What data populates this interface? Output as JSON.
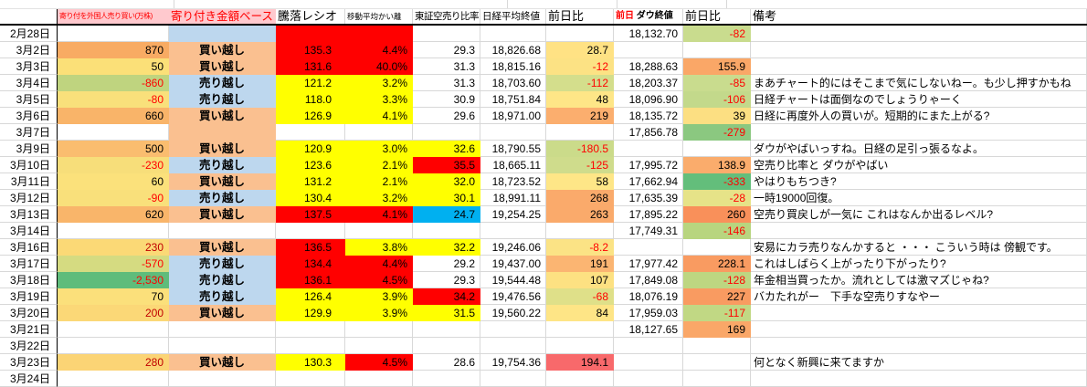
{
  "header": {
    "col_b": "寄り付を外国人売り買い(万株)",
    "col_c": "寄り付き金額ベース",
    "col_d": "騰落レシオ",
    "col_e": "移動平均かい離",
    "col_f": "東証空売り比率",
    "col_g": "日経平均終値",
    "col_h": "前日比",
    "col_i_prev": "前日",
    "col_i_close": "ダウ終値",
    "col_j": "前日比",
    "col_k": "備考"
  },
  "colors": {
    "grid": "#D8D8D8",
    "negative_text": "#FF0000",
    "manual_red_text": "#C00000",
    "header_pink": "#FFC9CE",
    "buy_peach": "#FAC090",
    "sell_blue": "#BDD7EE",
    "hot_red": "#FF0000",
    "warn_yellow": "#FFFF00",
    "cool_cyan": "#00B0F0",
    "salmon_red": "#F8696B"
  },
  "rows": [
    {
      "date": "2月28日",
      "b": "",
      "c": {
        "v": "",
        "bg": "#BDD7EE"
      },
      "d": {
        "v": "",
        "bg": "#FF0000"
      },
      "e": {
        "v": "",
        "bg": "#FF0000"
      },
      "f": "",
      "g": "",
      "h": "",
      "i": "18,132.70",
      "j": {
        "v": "-82",
        "bg": "#C9DC8E",
        "fg": "#FF0000"
      },
      "k": ""
    },
    {
      "date": "3月2日",
      "b": {
        "v": "870",
        "bg": "#F8AB63"
      },
      "c": {
        "v": "買い越し",
        "bg": "#FAC090"
      },
      "d": {
        "v": "135.3",
        "bg": "#FF0000"
      },
      "e": {
        "v": "4.4%",
        "bg": "#FF0000"
      },
      "f": "29.3",
      "g": "18,826.68",
      "h": {
        "v": "28.7",
        "bg": "#FFE284"
      },
      "i": "",
      "j": "",
      "k": ""
    },
    {
      "date": "3月3日",
      "b": {
        "v": "50",
        "bg": "#FBE078"
      },
      "c": {
        "v": "買い越し",
        "bg": "#FAC090"
      },
      "d": {
        "v": "131.6",
        "bg": "#FF0000"
      },
      "e": {
        "v": "40.0%",
        "bg": "#FF0000"
      },
      "f": "31.3",
      "g": "18,815.16",
      "h": {
        "v": "-12",
        "bg": "#FCE284",
        "fg": "#FF0000"
      },
      "i": "18,288.63",
      "j": {
        "v": "155.9",
        "bg": "#FAA767"
      },
      "k": ""
    },
    {
      "date": "3月4日",
      "b": {
        "v": "-860",
        "bg": "#BFD47F",
        "fg": "#FF0000"
      },
      "c": {
        "v": "売り越し",
        "bg": "#BDD7EE"
      },
      "d": {
        "v": "121.2",
        "bg": "#FFFF00"
      },
      "e": {
        "v": "3.2%",
        "bg": "#FFFF00"
      },
      "f": "31.3",
      "g": "18,703.60",
      "h": {
        "v": "-112",
        "bg": "#D4DE8C",
        "fg": "#FF0000"
      },
      "i": "18,203.37",
      "j": {
        "v": "-85",
        "bg": "#C9DC8E",
        "fg": "#FF0000"
      },
      "k": "まあチャート的にはそこまで気にしないねー。も少し押すかもね"
    },
    {
      "date": "3月5日",
      "b": {
        "v": "-80",
        "bg": "#F9E07B",
        "fg": "#FF0000"
      },
      "c": {
        "v": "売り越し",
        "bg": "#BDD7EE"
      },
      "d": {
        "v": "118.0",
        "bg": "#FFFF00"
      },
      "e": {
        "v": "3.3%",
        "bg": "#FFFF00"
      },
      "f": "30.9",
      "g": "18,751.84",
      "h": {
        "v": "48",
        "bg": "#FEE687"
      },
      "i": "18,096.90",
      "j": {
        "v": "-106",
        "bg": "#C3D98B",
        "fg": "#FF0000"
      },
      "k": "日経チャートは面倒なのでしょうりゃーく"
    },
    {
      "date": "3月6日",
      "b": {
        "v": "660",
        "bg": "#F9B469"
      },
      "c": {
        "v": "買い越し",
        "bg": "#FAC090"
      },
      "d": {
        "v": "126.9",
        "bg": "#FFFF00"
      },
      "e": {
        "v": "4.1%",
        "bg": "#FFFF00"
      },
      "f": "29.6",
      "g": "18,971.00",
      "h": {
        "v": "219",
        "bg": "#FBAE6E"
      },
      "i": "18,135.72",
      "j": {
        "v": "39",
        "bg": "#FCDF82"
      },
      "k": "日経に再度外人の買いが。短期的にまた上がる?"
    },
    {
      "date": "3月7日",
      "b": "",
      "c": {
        "v": "",
        "bg": "#FAC090"
      },
      "d": "",
      "e": "",
      "f": "",
      "g": "",
      "h": "",
      "i": "17,856.78",
      "j": {
        "v": "-279",
        "bg": "#8BC880",
        "fg": "#FF0000"
      },
      "k": ""
    },
    {
      "date": "3月9日",
      "b": {
        "v": "500",
        "bg": "#FABD6F"
      },
      "c": {
        "v": "買い越し",
        "bg": "#FAC090"
      },
      "d": {
        "v": "120.9",
        "bg": "#FFFF00"
      },
      "e": {
        "v": "3.0%",
        "bg": "#FFFF00"
      },
      "f": {
        "v": "32.6",
        "bg": "#FFFF00"
      },
      "g": "18,790.55",
      "h": {
        "v": "-180.5",
        "bg": "#CBDB8A",
        "fg": "#FF0000"
      },
      "i": "",
      "j": "",
      "k": "ダウがやばいっすね。日経の足引っ張るなよ。"
    },
    {
      "date": "3月10日",
      "b": {
        "v": "-230",
        "bg": "#F7DE7A",
        "fg": "#FF0000"
      },
      "c": {
        "v": "売り越し",
        "bg": "#BDD7EE"
      },
      "d": {
        "v": "123.6",
        "bg": "#FFFF00"
      },
      "e": {
        "v": "2.1%",
        "bg": "#FFFF00"
      },
      "f": {
        "v": "35.5",
        "bg": "#FF0000"
      },
      "g": "18,665.11",
      "h": {
        "v": "-125",
        "bg": "#CFDC8C",
        "fg": "#FF0000"
      },
      "i": "17,995.72",
      "j": {
        "v": "138.9",
        "bg": "#FAAC6C"
      },
      "k": "空売り比率と ダウがやばい"
    },
    {
      "date": "3月11日",
      "b": {
        "v": "60",
        "bg": "#FBE17B"
      },
      "c": {
        "v": "買い越し",
        "bg": "#FAC090"
      },
      "d": {
        "v": "131.2",
        "bg": "#FFFF00"
      },
      "e": {
        "v": "2.1%",
        "bg": "#FFFF00"
      },
      "f": {
        "v": "32.0",
        "bg": "#FFFF00"
      },
      "g": "18,723.52",
      "h": {
        "v": "58",
        "bg": "#FEE687"
      },
      "i": "17,662.94",
      "j": {
        "v": "-333",
        "bg": "#63BE7B",
        "fg": "#FF0000"
      },
      "k": "やはりもちつき?"
    },
    {
      "date": "3月12日",
      "b": {
        "v": "-90",
        "bg": "#F9E07B",
        "fg": "#FF0000"
      },
      "c": {
        "v": "売り越し",
        "bg": "#BDD7EE"
      },
      "d": {
        "v": "130.4",
        "bg": "#FFFF00"
      },
      "e": {
        "v": "3.2%",
        "bg": "#FFFF00"
      },
      "f": {
        "v": "30.1",
        "bg": "#FFFF00"
      },
      "g": "18,991.11",
      "h": {
        "v": "268",
        "bg": "#FAAA6B"
      },
      "i": "17,635.39",
      "j": {
        "v": "-28",
        "bg": "#E6E388",
        "fg": "#FF0000"
      },
      "k": "一時19000回復。"
    },
    {
      "date": "3月13日",
      "b": {
        "v": "620",
        "bg": "#F9B56A"
      },
      "c": {
        "v": "買い越し",
        "bg": "#FAC090"
      },
      "d": {
        "v": "137.5",
        "bg": "#FF0000"
      },
      "e": {
        "v": "4.1%",
        "bg": "#FF0000"
      },
      "f": {
        "v": "24.7",
        "bg": "#00B0F0"
      },
      "g": "19,254.25",
      "h": {
        "v": "263",
        "bg": "#FAAA6B"
      },
      "i": "17,895.22",
      "j": {
        "v": "260",
        "bg": "#F9905A"
      },
      "k": "空売り買戻しが一気に これはなんか出るレベル?"
    },
    {
      "date": "3月14日",
      "b": "",
      "c": "",
      "d": "",
      "e": "",
      "f": "",
      "g": "",
      "h": "",
      "i": "17,749.31",
      "j": {
        "v": "-146",
        "bg": "#B8D57F",
        "fg": "#FF0000"
      },
      "k": ""
    },
    {
      "date": "3月16日",
      "b": {
        "v": "230",
        "bg": "#FBD976",
        "fg": "#C00000"
      },
      "c": {
        "v": "買い越し",
        "bg": "#FAC090"
      },
      "d": {
        "v": "136.5",
        "bg": "#FF0000"
      },
      "e": {
        "v": "3.8%",
        "bg": "#FFFF00"
      },
      "f": {
        "v": "32.2",
        "bg": "#FFFF00"
      },
      "g": "19,246.06",
      "h": {
        "v": "-8.2",
        "bg": "#FBE385",
        "fg": "#FF0000"
      },
      "i": "",
      "j": "",
      "k": "安易にカラ売りなんかすると ・・・ こういう時は 傍観です。"
    },
    {
      "date": "3月17日",
      "b": {
        "v": "-570",
        "bg": "#D5DB81",
        "fg": "#FF0000"
      },
      "c": {
        "v": "売り越し",
        "bg": "#BDD7EE"
      },
      "d": {
        "v": "134.4",
        "bg": "#FF0000"
      },
      "e": {
        "v": "4.4%",
        "bg": "#FF0000"
      },
      "f": "29.2",
      "g": "19,437.00",
      "h": {
        "v": "191",
        "bg": "#FBB572"
      },
      "i": "17,977.42",
      "j": {
        "v": "228.1",
        "bg": "#F99B61"
      },
      "k": "これはしばらく上がったり下がったり?"
    },
    {
      "date": "3月18日",
      "b": {
        "v": "-2,530",
        "bg": "#5FBC7B",
        "fg": "#FF0000"
      },
      "c": {
        "v": "売り越し",
        "bg": "#BDD7EE"
      },
      "d": {
        "v": "136.1",
        "bg": "#FF0000"
      },
      "e": {
        "v": "4.5%",
        "bg": "#FF0000"
      },
      "f": "29.3",
      "g": "19,544.48",
      "h": {
        "v": "107",
        "bg": "#FDE182"
      },
      "i": "17,849.08",
      "j": {
        "v": "-128",
        "bg": "#BDD681",
        "fg": "#FF0000"
      },
      "k": "年金相当買ったか。流れとしては激マズじゃね?"
    },
    {
      "date": "3月19日",
      "b": {
        "v": "70",
        "bg": "#FBE07B"
      },
      "c": {
        "v": "売り越し",
        "bg": "#BDD7EE"
      },
      "d": {
        "v": "126.4",
        "bg": "#FFFF00"
      },
      "e": {
        "v": "3.9%",
        "bg": "#FFFF00"
      },
      "f": {
        "v": "34.2",
        "bg": "#FF0000"
      },
      "g": "19,476.56",
      "h": {
        "v": "-68",
        "bg": "#DFE089",
        "fg": "#FF0000"
      },
      "i": "18,076.19",
      "j": {
        "v": "227",
        "bg": "#F99B61"
      },
      "k": "バカたれがー　下手な空売りすなやー"
    },
    {
      "date": "3月20日",
      "b": {
        "v": "200",
        "bg": "#FBD877",
        "fg": "#C00000"
      },
      "c": {
        "v": "買い越し",
        "bg": "#FAC090"
      },
      "d": {
        "v": "129.9",
        "bg": "#FFFF00"
      },
      "e": {
        "v": "3.9%",
        "bg": "#FFFF00"
      },
      "f": {
        "v": "31.5",
        "bg": "#FFFF00"
      },
      "g": "19,560.22",
      "h": {
        "v": "84",
        "bg": "#FEE586"
      },
      "i": "17,959.03",
      "j": {
        "v": "-117",
        "bg": "#C1D884",
        "fg": "#FF0000"
      },
      "k": ""
    },
    {
      "date": "3月21日",
      "b": "",
      "c": "",
      "d": "",
      "e": "",
      "f": "",
      "g": "",
      "h": "",
      "i": "18,127.65",
      "j": {
        "v": "169",
        "bg": "#FAA768"
      },
      "k": ""
    },
    {
      "date": "3月22日",
      "b": "",
      "c": "",
      "d": "",
      "e": "",
      "f": "",
      "g": "",
      "h": "",
      "i": "",
      "j": "",
      "k": ""
    },
    {
      "date": "3月23日",
      "b": {
        "v": "280",
        "bg": "#FBD475",
        "fg": "#C00000"
      },
      "c": {
        "v": "買い越し",
        "bg": "#FAC090"
      },
      "d": {
        "v": "130.3",
        "bg": "#FFFF00"
      },
      "e": {
        "v": "4.5%",
        "bg": "#FF0000"
      },
      "f": "28.6",
      "g": "19,754.36",
      "h": {
        "v": "194.1",
        "bg": "#F8696B"
      },
      "i": "",
      "j": "",
      "k": "何となく新興に来てますか"
    },
    {
      "date": "3月24日",
      "b": "",
      "c": "",
      "d": "",
      "e": "",
      "f": "",
      "g": "",
      "h": "",
      "i": "",
      "j": "",
      "k": ""
    }
  ]
}
